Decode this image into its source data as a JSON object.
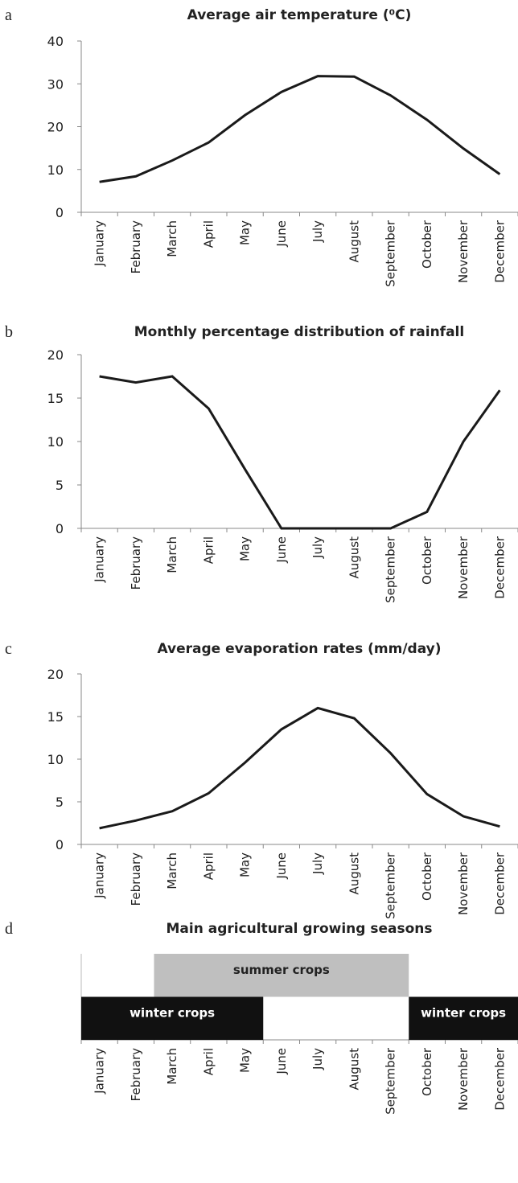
{
  "chart_data": [
    {
      "type": "line",
      "label": "a",
      "title": "Average air temperature (⁰C)",
      "categories": [
        "January",
        "February",
        "March",
        "April",
        "May",
        "June",
        "July",
        "August",
        "September",
        "October",
        "November",
        "December"
      ],
      "values": [
        7.1,
        8.4,
        12.1,
        16.3,
        22.7,
        28.1,
        31.8,
        31.7,
        27.3,
        21.6,
        14.9,
        8.9
      ],
      "color": "#1a1a1a",
      "ylim": [
        0,
        40
      ],
      "yticks": [
        0,
        10,
        20,
        30,
        40
      ]
    },
    {
      "type": "line",
      "label": "b",
      "title": "Monthly percentage distribution of rainfall",
      "categories": [
        "January",
        "February",
        "March",
        "April",
        "May",
        "June",
        "July",
        "August",
        "September",
        "October",
        "November",
        "December"
      ],
      "values": [
        17.5,
        16.8,
        17.5,
        13.8,
        6.8,
        0,
        0,
        0,
        0,
        1.9,
        10,
        15.9
      ],
      "color": "#1a1a1a",
      "ylim": [
        0,
        20
      ],
      "yticks": [
        0,
        5,
        10,
        15,
        20
      ]
    },
    {
      "type": "line",
      "label": "c",
      "title": "Average evaporation rates (mm/day)",
      "categories": [
        "January",
        "February",
        "March",
        "April",
        "May",
        "June",
        "July",
        "August",
        "September",
        "October",
        "November",
        "December"
      ],
      "values": [
        1.9,
        2.8,
        3.9,
        6.0,
        9.6,
        13.5,
        16.0,
        14.8,
        10.7,
        5.9,
        3.3,
        2.1
      ],
      "color": "#1a1a1a",
      "ylim": [
        0,
        20
      ],
      "yticks": [
        0,
        5,
        10,
        15,
        20
      ]
    },
    {
      "type": "timeline",
      "label": "d",
      "title": "Main agricultural growing seasons",
      "categories": [
        "January",
        "February",
        "March",
        "April",
        "May",
        "June",
        "July",
        "August",
        "September",
        "October",
        "November",
        "December"
      ],
      "rows": [
        [
          {
            "label": "summer crops",
            "start": "March",
            "end": "September",
            "color": "#bfbfbf"
          }
        ],
        [
          {
            "label": "winter crops",
            "start": "January",
            "end": "May",
            "color": "#111111"
          },
          {
            "label": "winter crops",
            "start": "October",
            "end": "December",
            "color": "#111111"
          }
        ]
      ]
    }
  ]
}
